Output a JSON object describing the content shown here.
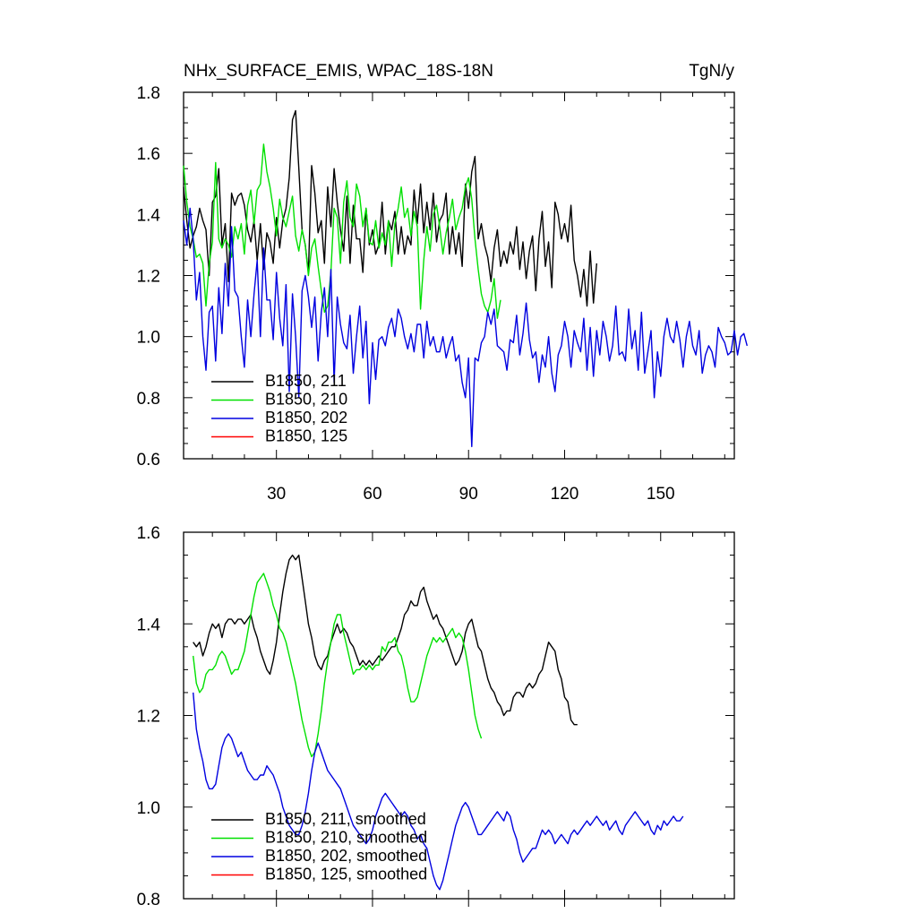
{
  "chart_data": [
    {
      "type": "line",
      "title": "NHx_SURFACE_EMIS, WPAC_18S-18N",
      "units": "TgN/y",
      "xlim": [
        1,
        173
      ],
      "ylim": [
        0.6,
        1.8
      ],
      "x_ticks": [
        30,
        60,
        90,
        120,
        150
      ],
      "y_ticks": [
        0.6,
        0.8,
        1.0,
        1.2,
        1.4,
        1.6,
        1.8
      ],
      "y_tick_labels": [
        "0.6",
        "0.8",
        "1.0",
        "1.2",
        "1.4",
        "1.6",
        "1.8"
      ],
      "legend_position": "bottom-left",
      "series": [
        {
          "name": "B1850, 211",
          "color": "#000000",
          "x0": 1,
          "values": [
            1.49,
            1.38,
            1.29,
            1.33,
            1.36,
            1.42,
            1.38,
            1.35,
            1.2,
            1.44,
            1.46,
            1.55,
            1.3,
            1.37,
            1.18,
            1.47,
            1.43,
            1.46,
            1.47,
            1.43,
            1.35,
            1.31,
            1.38,
            1.25,
            1.37,
            1.22,
            1.34,
            1.31,
            1.24,
            1.39,
            1.29,
            1.38,
            1.42,
            1.52,
            1.71,
            1.74,
            1.55,
            1.35,
            1.3,
            1.21,
            1.56,
            1.47,
            1.34,
            1.38,
            1.24,
            1.49,
            1.36,
            1.55,
            1.44,
            1.35,
            1.28,
            1.46,
            1.24,
            1.43,
            1.32,
            1.32,
            1.21,
            1.42,
            1.3,
            1.35,
            1.27,
            1.3,
            1.44,
            1.27,
            1.38,
            1.35,
            1.41,
            1.27,
            1.36,
            1.27,
            1.33,
            1.3,
            1.48,
            1.37,
            1.5,
            1.34,
            1.44,
            1.35,
            1.47,
            1.31,
            1.38,
            1.4,
            1.47,
            1.27,
            1.36,
            1.27,
            1.34,
            1.23,
            1.5,
            1.42,
            1.54,
            1.59,
            1.32,
            1.37,
            1.3,
            1.26,
            1.18,
            1.29,
            1.35,
            1.23,
            1.28,
            1.24,
            1.31,
            1.27,
            1.36,
            1.22,
            1.31,
            1.19,
            1.28,
            1.33,
            1.15,
            1.32,
            1.41,
            1.23,
            1.31,
            1.16,
            1.44,
            1.4,
            1.32,
            1.37,
            1.31,
            1.43,
            1.25,
            1.2,
            1.13,
            1.22,
            1.1,
            1.28,
            1.11,
            1.24
          ]
        },
        {
          "name": "B1850, 210",
          "color": "#00e000",
          "x0": 1,
          "values": [
            1.56,
            1.44,
            1.36,
            1.32,
            1.26,
            1.27,
            1.24,
            1.1,
            1.24,
            1.31,
            1.57,
            1.32,
            1.29,
            1.32,
            1.3,
            1.26,
            1.36,
            1.32,
            1.37,
            1.27,
            1.43,
            1.48,
            1.37,
            1.48,
            1.5,
            1.63,
            1.54,
            1.49,
            1.42,
            1.33,
            1.45,
            1.39,
            1.36,
            1.41,
            1.46,
            1.33,
            1.28,
            1.35,
            1.3,
            1.2,
            1.29,
            1.32,
            1.23,
            1.15,
            1.08,
            1.1,
            1.21,
            1.42,
            1.39,
            1.24,
            1.44,
            1.51,
            1.39,
            1.36,
            1.5,
            1.46,
            1.36,
            1.42,
            1.31,
            1.3,
            1.38,
            1.29,
            1.34,
            1.3,
            1.38,
            1.23,
            1.37,
            1.42,
            1.49,
            1.39,
            1.42,
            1.33,
            1.41,
            1.36,
            1.09,
            1.25,
            1.36,
            1.28,
            1.4,
            1.43,
            1.36,
            1.27,
            1.34,
            1.39,
            1.45,
            1.35,
            1.39,
            1.42,
            1.49,
            1.52,
            1.45,
            1.32,
            1.22,
            1.14,
            1.1,
            1.08,
            1.12,
            1.19,
            1.06,
            1.12
          ]
        },
        {
          "name": "B1850, 202",
          "color": "#0000e0",
          "x0": 1,
          "values": [
            1.38,
            1.3,
            1.42,
            1.32,
            1.12,
            1.21,
            1.0,
            0.89,
            1.08,
            1.1,
            0.92,
            1.16,
            1.01,
            1.24,
            1.1,
            1.36,
            1.15,
            1.13,
            1.0,
            0.9,
            1.12,
            1.0,
            1.14,
            1.25,
            1.0,
            1.29,
            1.12,
            1.12,
            0.99,
            1.21,
            1.06,
            0.97,
            1.17,
            0.82,
            1.14,
            1.0,
            0.8,
            1.15,
            1.2,
            1.13,
            1.03,
            1.13,
            0.92,
            1.08,
            1.16,
            1.0,
            1.22,
            0.85,
            1.13,
            1.04,
            0.98,
            0.96,
            1.07,
            0.88,
            1.0,
            1.1,
            0.93,
            1.05,
            0.78,
            0.98,
            0.86,
            0.99,
            1.0,
            0.97,
            1.03,
            1.06,
            1.0,
            1.09,
            1.06,
            1.0,
            0.96,
            1.01,
            0.95,
            1.04,
            1.04,
            0.93,
            1.05,
            0.97,
            1.0,
            0.95,
            0.95,
            1.0,
            0.93,
            0.97,
            1.0,
            0.92,
            0.94,
            0.85,
            0.8,
            0.93,
            0.64,
            0.93,
            0.92,
            0.98,
            1.0,
            1.08,
            1.04,
            1.09,
            0.97,
            0.96,
            0.95,
            0.89,
            0.99,
            0.98,
            1.07,
            0.94,
            1.01,
            1.11,
            0.99,
            0.93,
            0.95,
            0.85,
            0.94,
            0.9,
            1.0,
            0.88,
            0.82,
            0.94,
            0.97,
            1.05,
            1.0,
            0.9,
            1.02,
            0.98,
            0.95,
            1.06,
            0.89,
            1.03,
            0.87,
            1.02,
            0.94,
            1.05,
            1.0,
            0.92,
            0.97,
            1.1,
            0.94,
            0.95,
            0.92,
            1.09,
            0.96,
            1.02,
            0.89,
            1.08,
            0.88,
            0.95,
            1.02,
            0.8,
            0.95,
            0.87,
            1.0,
            1.06,
            1.0,
            0.98,
            1.05,
            0.99,
            0.9,
            1.0,
            1.05,
            0.97,
            0.94,
            1.02,
            0.88,
            0.94,
            0.97,
            0.95,
            0.9,
            1.03,
            1.0,
            0.98,
            0.94,
            0.95,
            1.02,
            0.94,
            1.0,
            1.01,
            0.97
          ]
        },
        {
          "name": "B1850, 125",
          "color": "#ff0000",
          "x0": 1,
          "values": []
        }
      ]
    },
    {
      "type": "line",
      "xlim": [
        1,
        173
      ],
      "ylim": [
        0.8,
        1.6
      ],
      "x_ticks": [
        30,
        60,
        90,
        120,
        150
      ],
      "y_ticks": [
        0.8,
        1.0,
        1.2,
        1.4,
        1.6
      ],
      "y_tick_labels": [
        "0.8",
        "1.0",
        "1.2",
        "1.4",
        "1.6"
      ],
      "legend_position": "bottom-left",
      "series": [
        {
          "name": "B1850, 211, smoothed",
          "color": "#000000",
          "x0": 4,
          "values": [
            1.36,
            1.35,
            1.36,
            1.33,
            1.35,
            1.38,
            1.4,
            1.39,
            1.4,
            1.37,
            1.4,
            1.41,
            1.41,
            1.4,
            1.41,
            1.41,
            1.4,
            1.41,
            1.42,
            1.39,
            1.37,
            1.34,
            1.32,
            1.3,
            1.29,
            1.32,
            1.36,
            1.42,
            1.47,
            1.51,
            1.54,
            1.55,
            1.54,
            1.55,
            1.5,
            1.45,
            1.4,
            1.37,
            1.33,
            1.31,
            1.3,
            1.32,
            1.33,
            1.36,
            1.38,
            1.4,
            1.38,
            1.39,
            1.38,
            1.36,
            1.35,
            1.33,
            1.31,
            1.32,
            1.31,
            1.32,
            1.31,
            1.32,
            1.33,
            1.32,
            1.33,
            1.34,
            1.35,
            1.35,
            1.37,
            1.39,
            1.42,
            1.43,
            1.45,
            1.44,
            1.44,
            1.47,
            1.48,
            1.45,
            1.43,
            1.41,
            1.42,
            1.4,
            1.39,
            1.37,
            1.35,
            1.33,
            1.31,
            1.32,
            1.34,
            1.38,
            1.4,
            1.41,
            1.38,
            1.35,
            1.34,
            1.31,
            1.28,
            1.26,
            1.25,
            1.23,
            1.22,
            1.2,
            1.21,
            1.21,
            1.24,
            1.25,
            1.25,
            1.24,
            1.26,
            1.27,
            1.26,
            1.27,
            1.29,
            1.3,
            1.33,
            1.36,
            1.35,
            1.34,
            1.3,
            1.28,
            1.24,
            1.23,
            1.19,
            1.18,
            1.18
          ]
        },
        {
          "name": "B1850, 210, smoothed",
          "color": "#00e000",
          "x0": 4,
          "values": [
            1.33,
            1.27,
            1.25,
            1.26,
            1.29,
            1.3,
            1.3,
            1.31,
            1.33,
            1.34,
            1.33,
            1.31,
            1.29,
            1.3,
            1.3,
            1.32,
            1.34,
            1.38,
            1.42,
            1.46,
            1.49,
            1.5,
            1.51,
            1.49,
            1.47,
            1.44,
            1.42,
            1.39,
            1.38,
            1.36,
            1.33,
            1.3,
            1.27,
            1.23,
            1.19,
            1.16,
            1.13,
            1.11,
            1.12,
            1.16,
            1.21,
            1.27,
            1.32,
            1.36,
            1.4,
            1.42,
            1.42,
            1.38,
            1.35,
            1.32,
            1.29,
            1.3,
            1.3,
            1.31,
            1.3,
            1.31,
            1.3,
            1.31,
            1.31,
            1.35,
            1.34,
            1.36,
            1.36,
            1.37,
            1.34,
            1.33,
            1.3,
            1.26,
            1.23,
            1.23,
            1.24,
            1.27,
            1.3,
            1.33,
            1.35,
            1.37,
            1.36,
            1.37,
            1.36,
            1.37,
            1.38,
            1.39,
            1.37,
            1.38,
            1.37,
            1.34,
            1.3,
            1.25,
            1.2,
            1.17,
            1.15
          ]
        },
        {
          "name": "B1850, 202, smoothed",
          "color": "#0000e0",
          "x0": 4,
          "values": [
            1.25,
            1.17,
            1.13,
            1.1,
            1.06,
            1.04,
            1.04,
            1.05,
            1.09,
            1.13,
            1.15,
            1.16,
            1.15,
            1.13,
            1.11,
            1.12,
            1.1,
            1.08,
            1.07,
            1.06,
            1.06,
            1.07,
            1.07,
            1.09,
            1.08,
            1.07,
            1.05,
            1.03,
            1.0,
            0.98,
            0.96,
            0.95,
            0.94,
            0.94,
            0.96,
            0.99,
            1.03,
            1.08,
            1.12,
            1.14,
            1.12,
            1.1,
            1.08,
            1.07,
            1.06,
            1.05,
            1.04,
            1.02,
            1.0,
            0.98,
            0.96,
            0.95,
            0.94,
            0.93,
            0.92,
            0.93,
            0.95,
            0.98,
            1.0,
            1.02,
            1.03,
            1.02,
            1.01,
            1.0,
            0.99,
            0.98,
            0.99,
            0.98,
            0.96,
            0.95,
            0.93,
            0.94,
            0.92,
            0.91,
            0.88,
            0.85,
            0.83,
            0.82,
            0.84,
            0.87,
            0.9,
            0.93,
            0.96,
            0.98,
            1.0,
            1.01,
            1.0,
            0.98,
            0.96,
            0.94,
            0.94,
            0.95,
            0.96,
            0.97,
            0.98,
            0.99,
            0.98,
            0.97,
            0.99,
            0.98,
            0.95,
            0.93,
            0.9,
            0.88,
            0.89,
            0.9,
            0.91,
            0.91,
            0.93,
            0.95,
            0.94,
            0.95,
            0.94,
            0.92,
            0.93,
            0.94,
            0.93,
            0.92,
            0.94,
            0.95,
            0.94,
            0.95,
            0.96,
            0.97,
            0.96,
            0.97,
            0.98,
            0.97,
            0.96,
            0.97,
            0.95,
            0.96,
            0.97,
            0.95,
            0.94,
            0.96,
            0.97,
            0.98,
            0.99,
            0.98,
            0.97,
            0.96,
            0.97,
            0.95,
            0.94,
            0.96,
            0.95,
            0.97,
            0.96,
            0.97,
            0.98,
            0.97,
            0.97,
            0.98
          ]
        },
        {
          "name": "B1850, 125, smoothed",
          "color": "#ff0000",
          "x0": 4,
          "values": []
        }
      ]
    }
  ]
}
